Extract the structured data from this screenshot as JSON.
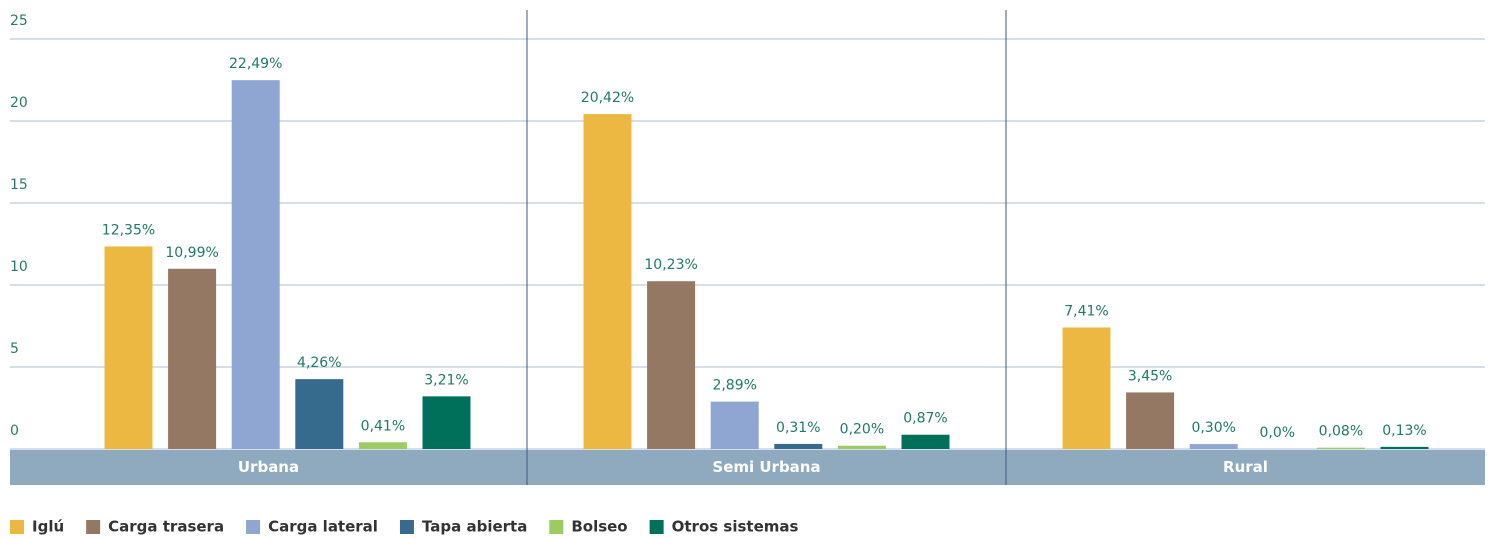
{
  "chart_data": {
    "type": "bar",
    "categories": [
      "Urbana",
      "Semi Urbana",
      "Rural"
    ],
    "series": [
      {
        "name": "Iglú",
        "color": "#ecb842",
        "values": [
          12.35,
          20.42,
          7.41
        ],
        "value_labels": [
          "12,35%",
          "20,42%",
          "7,41%"
        ]
      },
      {
        "name": "Carga trasera",
        "color": "#947864",
        "values": [
          10.99,
          10.23,
          3.45
        ],
        "value_labels": [
          "10,99%",
          "10,23%",
          "3,45%"
        ]
      },
      {
        "name": "Carga lateral",
        "color": "#8fa6d3",
        "values": [
          22.49,
          2.89,
          0.3
        ],
        "value_labels": [
          "22,49%",
          "2,89%",
          "0,30%"
        ]
      },
      {
        "name": "Tapa abierta",
        "color": "#376b8e",
        "values": [
          4.26,
          0.31,
          0.0
        ],
        "value_labels": [
          "4,26%",
          "0,31%",
          "0,0%"
        ]
      },
      {
        "name": "Bolseo",
        "color": "#9ccb62",
        "values": [
          0.41,
          0.2,
          0.08
        ],
        "value_labels": [
          "0,41%",
          "0,20%",
          "0,08%"
        ]
      },
      {
        "name": "Otros sistemas",
        "color": "#00705a",
        "values": [
          3.21,
          0.87,
          0.13
        ],
        "value_labels": [
          "3,21%",
          "0,87%",
          "0,13%"
        ]
      }
    ],
    "ylim": [
      0,
      25
    ],
    "yticks": [
      0,
      5,
      10,
      15,
      20,
      25
    ],
    "grid": true,
    "legend": "bottom"
  }
}
